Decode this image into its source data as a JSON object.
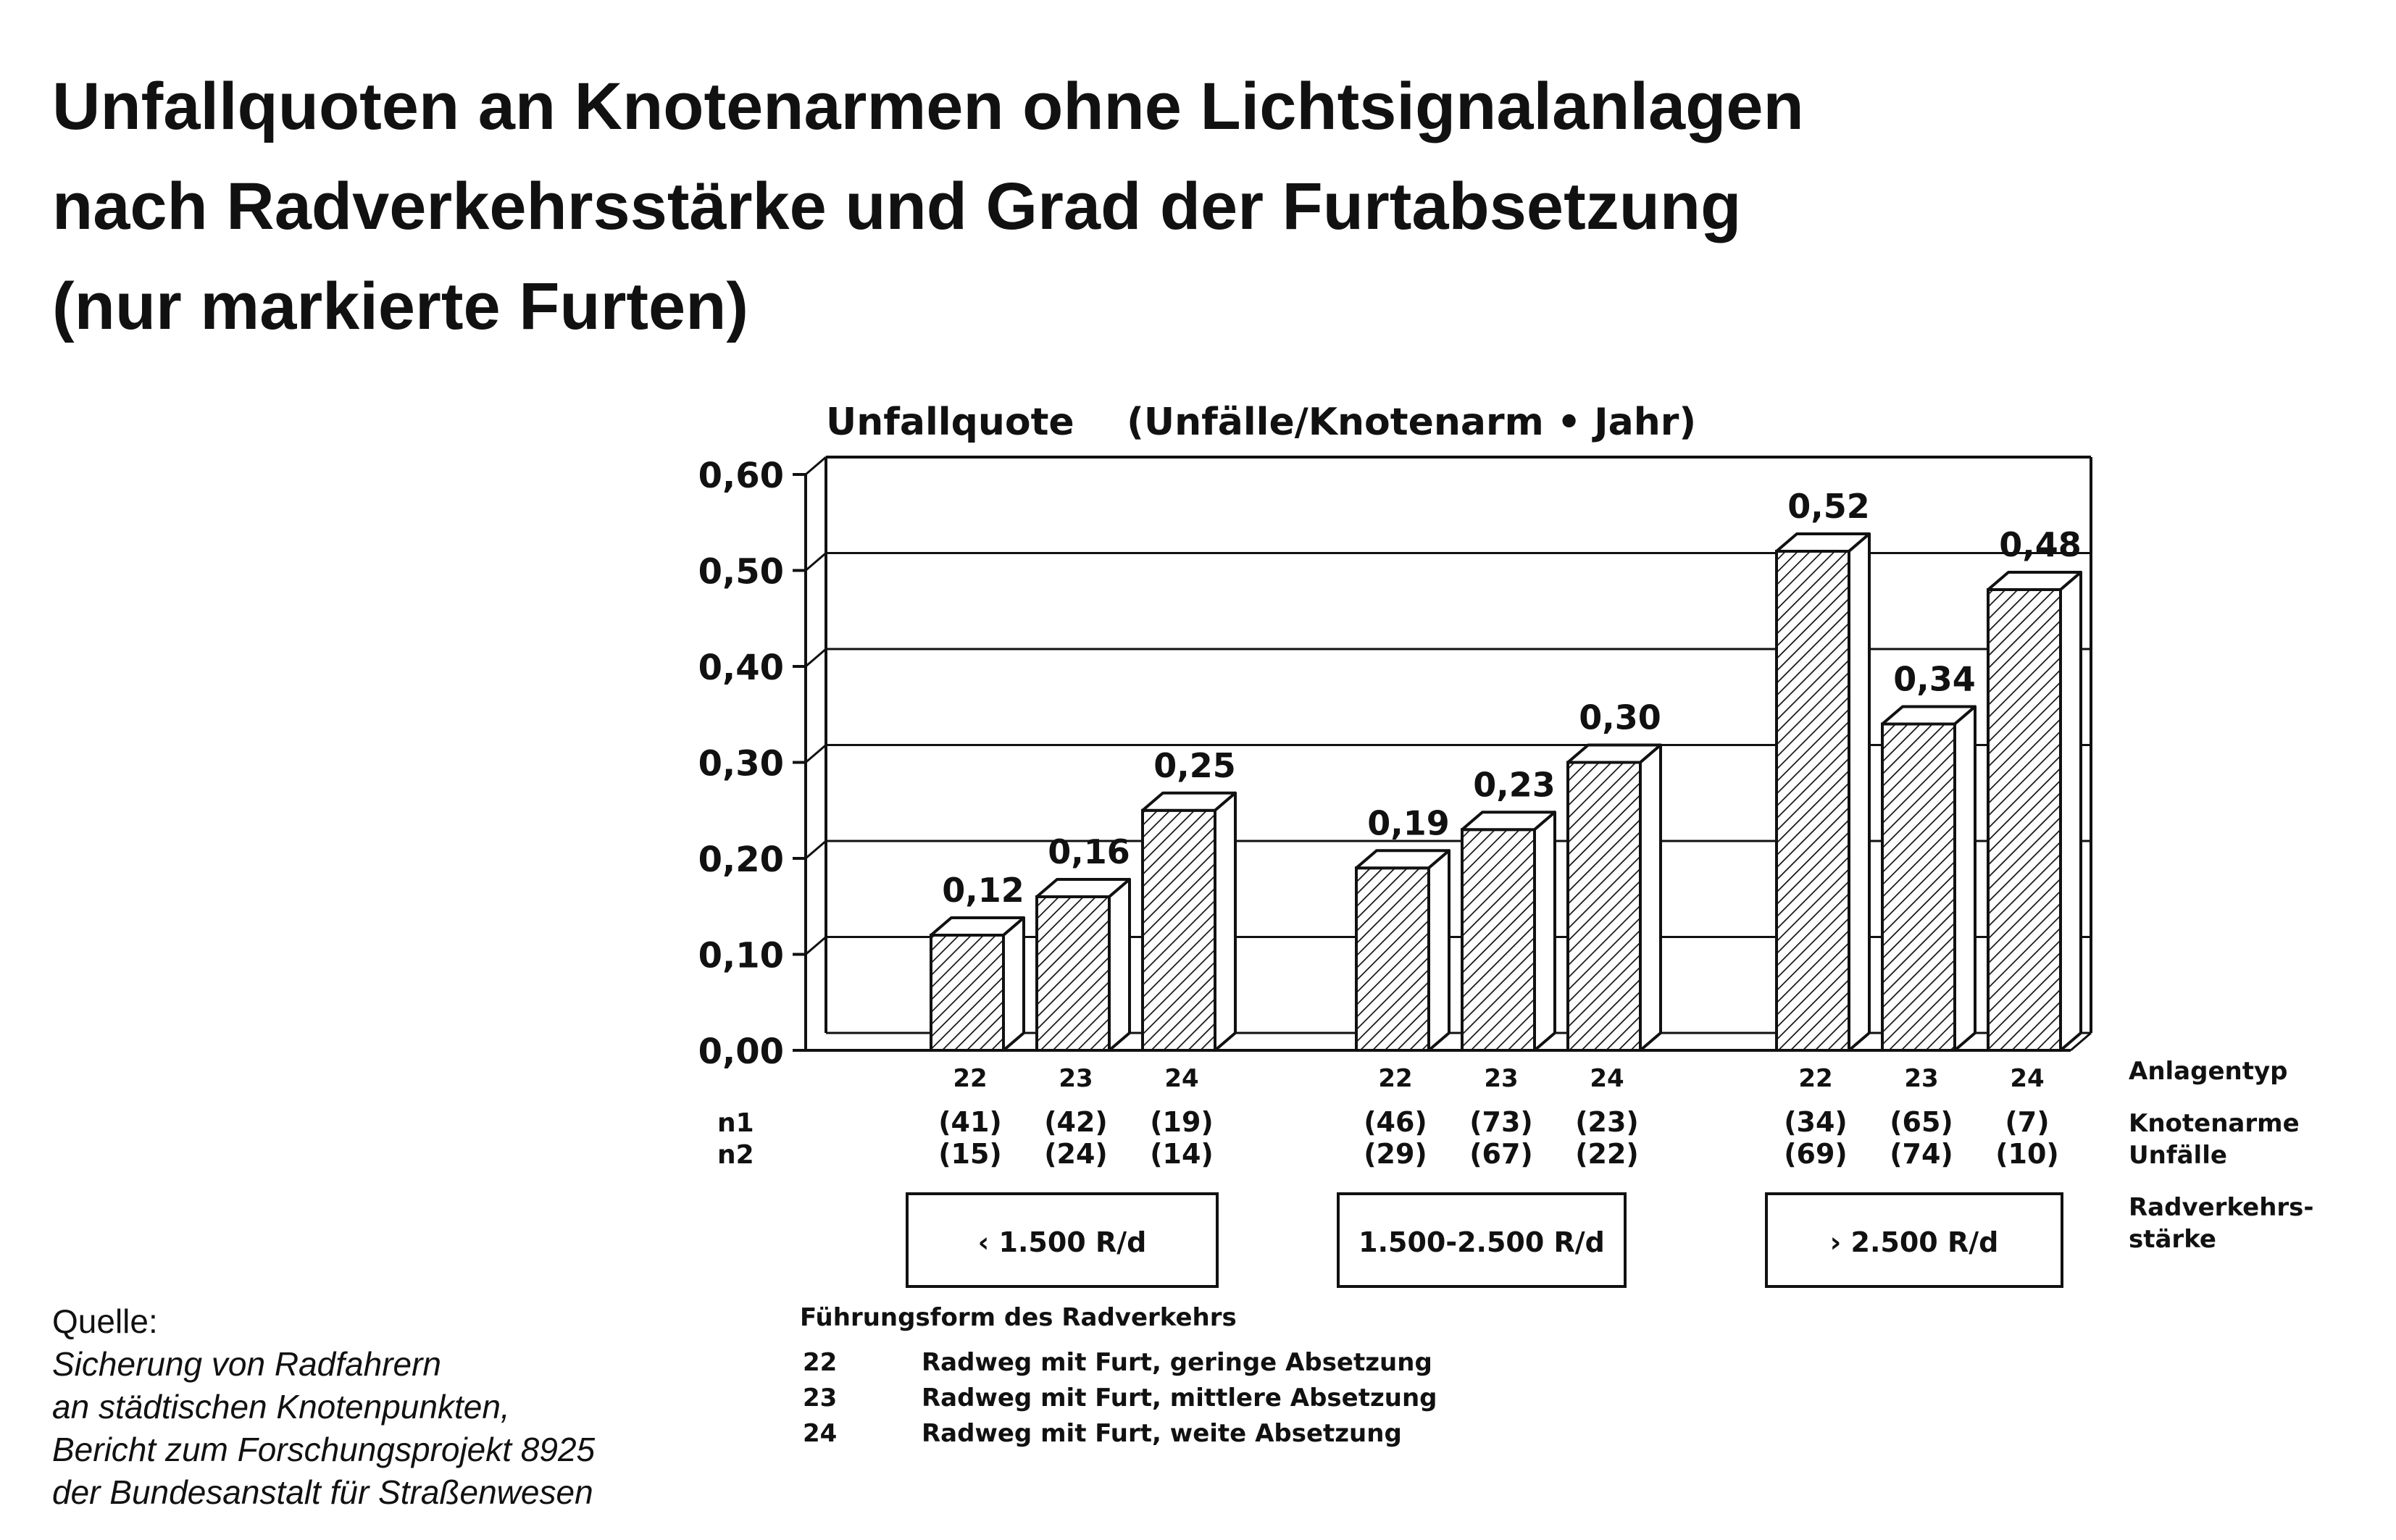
{
  "title_lines": [
    "Unfallquoten an Knotenarmen ohne Lichtsignalanlagen",
    "nach Radverkehrsstärke und Grad der Furtabsetzung",
    "(nur markierte Furten)"
  ],
  "chart_data": {
    "type": "bar",
    "ylabel": "Unfallquote    (Unfälle/Knotenarm • Jahr)",
    "ylim": [
      0,
      0.6
    ],
    "yticks": [
      "0,00",
      "0,10",
      "0,20",
      "0,30",
      "0,40",
      "0,50",
      "0,60"
    ],
    "grid": true,
    "groups": [
      {
        "label": "‹ 1.500 R/d",
        "bars": [
          {
            "type": "22",
            "value": 0.12,
            "value_label": "0,12",
            "n1": "(41)",
            "n2": "(15)"
          },
          {
            "type": "23",
            "value": 0.16,
            "value_label": "0,16",
            "n1": "(42)",
            "n2": "(24)"
          },
          {
            "type": "24",
            "value": 0.25,
            "value_label": "0,25",
            "n1": "(19)",
            "n2": "(14)"
          }
        ]
      },
      {
        "label": "1.500-2.500 R/d",
        "bars": [
          {
            "type": "22",
            "value": 0.19,
            "value_label": "0,19",
            "n1": "(46)",
            "n2": "(29)"
          },
          {
            "type": "23",
            "value": 0.23,
            "value_label": "0,23",
            "n1": "(73)",
            "n2": "(67)"
          },
          {
            "type": "24",
            "value": 0.3,
            "value_label": "0,30",
            "n1": "(23)",
            "n2": "(22)"
          }
        ]
      },
      {
        "label": "› 2.500 R/d",
        "bars": [
          {
            "type": "22",
            "value": 0.52,
            "value_label": "0,52",
            "n1": "(34)",
            "n2": "(69)"
          },
          {
            "type": "23",
            "value": 0.34,
            "value_label": "0,34",
            "n1": "(65)",
            "n2": "(74)"
          },
          {
            "type": "24",
            "value": 0.48,
            "value_label": "0,48",
            "n1": "(7)",
            "n2": "(10)"
          }
        ]
      }
    ],
    "row_labels": {
      "n1": "n1",
      "n2": "n2"
    },
    "right_labels": {
      "type": "Anlagentyp",
      "n1": "Knotenarme",
      "n2": "Unfälle",
      "group_line1": "Radverkehrs-",
      "group_line2": "stärke"
    },
    "legend": {
      "title": "Führungsform des Radverkehrs",
      "entries": [
        {
          "code": "22",
          "text": "Radweg mit Furt, geringe Absetzung"
        },
        {
          "code": "23",
          "text": "Radweg mit Furt, mittlere Absetzung"
        },
        {
          "code": "24",
          "text": "Radweg mit Furt, weite Absetzung"
        }
      ]
    }
  },
  "source": {
    "label": "Quelle:",
    "lines": [
      "Sicherung von Radfahrern",
      "an städtischen Knotenpunkten,",
      "Bericht zum Forschungsprojekt 8925",
      "der Bundesanstalt für Straßenwesen"
    ]
  },
  "colors": {
    "ink": "#111111",
    "background": "#ffffff"
  }
}
